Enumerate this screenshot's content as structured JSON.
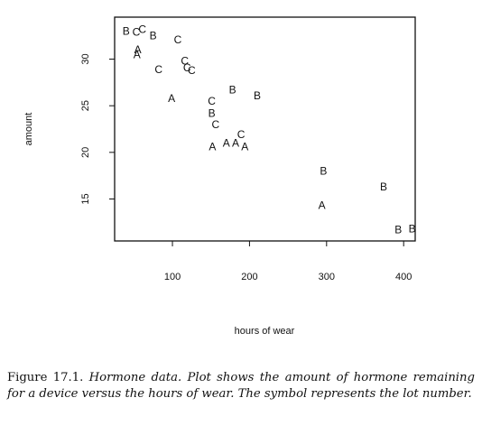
{
  "chart_data": {
    "type": "scatter",
    "title": "",
    "xlabel": "hours of wear",
    "ylabel": "amount",
    "xlim": [
      25,
      415
    ],
    "ylim": [
      10.5,
      34.5
    ],
    "xticks": [
      100,
      200,
      300,
      400
    ],
    "yticks": [
      15,
      20,
      25,
      30
    ],
    "grid": false,
    "legend": "none",
    "marker_style": "letter labels (A, B, C) represent lot",
    "series": [
      {
        "name": "A",
        "points": [
          [
            54,
            30.5
          ],
          [
            55,
            31.0
          ],
          [
            99,
            25.8
          ],
          [
            152,
            20.6
          ],
          [
            170,
            21.0
          ],
          [
            182,
            21.0
          ],
          [
            194,
            20.6
          ],
          [
            294,
            14.3
          ]
        ]
      },
      {
        "name": "B",
        "points": [
          [
            40,
            33.0
          ],
          [
            75,
            32.5
          ],
          [
            151,
            24.2
          ],
          [
            178,
            26.7
          ],
          [
            210,
            26.1
          ],
          [
            296,
            18.0
          ],
          [
            374,
            16.3
          ],
          [
            393,
            11.7
          ],
          [
            411,
            11.8
          ]
        ]
      },
      {
        "name": "C",
        "points": [
          [
            53,
            32.9
          ],
          [
            61,
            33.2
          ],
          [
            82,
            28.9
          ],
          [
            107,
            32.1
          ],
          [
            116,
            29.8
          ],
          [
            119,
            29.1
          ],
          [
            125,
            28.8
          ],
          [
            151,
            25.5
          ],
          [
            156,
            23.0
          ],
          [
            189,
            21.9
          ]
        ]
      }
    ]
  },
  "caption": {
    "lead": "Figure 17.1.",
    "body": "Hormone data. Plot shows the amount of hormone remaining for a device versus the hours of wear. The symbol represents the lot number."
  }
}
